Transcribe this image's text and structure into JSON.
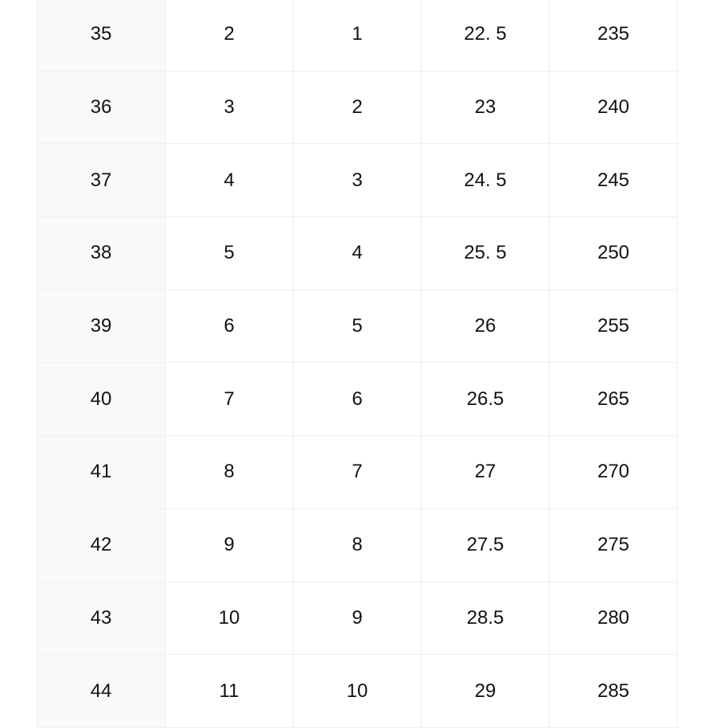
{
  "table": {
    "rows": [
      [
        "35",
        "2",
        "1",
        "22. 5",
        "235"
      ],
      [
        "36",
        "3",
        "2",
        "23",
        "240"
      ],
      [
        "37",
        "4",
        "3",
        "24. 5",
        "245"
      ],
      [
        "38",
        "5",
        "4",
        "25. 5",
        "250"
      ],
      [
        "39",
        "6",
        "5",
        "26",
        "255"
      ],
      [
        "40",
        "7",
        "6",
        "26.5",
        "265"
      ],
      [
        "41",
        "8",
        "7",
        "27",
        "270"
      ],
      [
        "42",
        "9",
        "8",
        "27.5",
        "275"
      ],
      [
        "43",
        "10",
        "9",
        "28.5",
        "280"
      ],
      [
        "44",
        "11",
        "10",
        "29",
        "285"
      ]
    ]
  }
}
